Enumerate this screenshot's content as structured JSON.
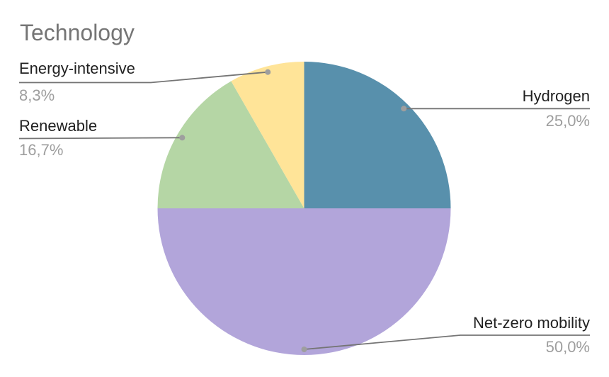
{
  "page": {
    "background": "#ffffff"
  },
  "chart_data": {
    "type": "pie",
    "title": "Technology",
    "title_color": "#757575",
    "label_color": "#212121",
    "value_color": "#9e9e9e",
    "leader_line_color": "#757575",
    "leader_dot_color": "#9e9e9e",
    "direction": "clockwise",
    "start_angle_deg": 0,
    "legend_position": "outside-callouts",
    "slices": [
      {
        "label": "Hydrogen",
        "value": 25.0,
        "value_label": "25,0%",
        "color": "#5890ac",
        "side": "right"
      },
      {
        "label": "Net-zero mobility",
        "value": 50.0,
        "value_label": "50,0%",
        "color": "#b2a5da",
        "side": "right"
      },
      {
        "label": "Renewable",
        "value": 16.7,
        "value_label": "16,7%",
        "color": "#b5d6a5",
        "side": "left"
      },
      {
        "label": "Energy-intensive",
        "value": 8.3,
        "value_label": "8,3%",
        "color": "#ffe498",
        "side": "left"
      }
    ]
  }
}
